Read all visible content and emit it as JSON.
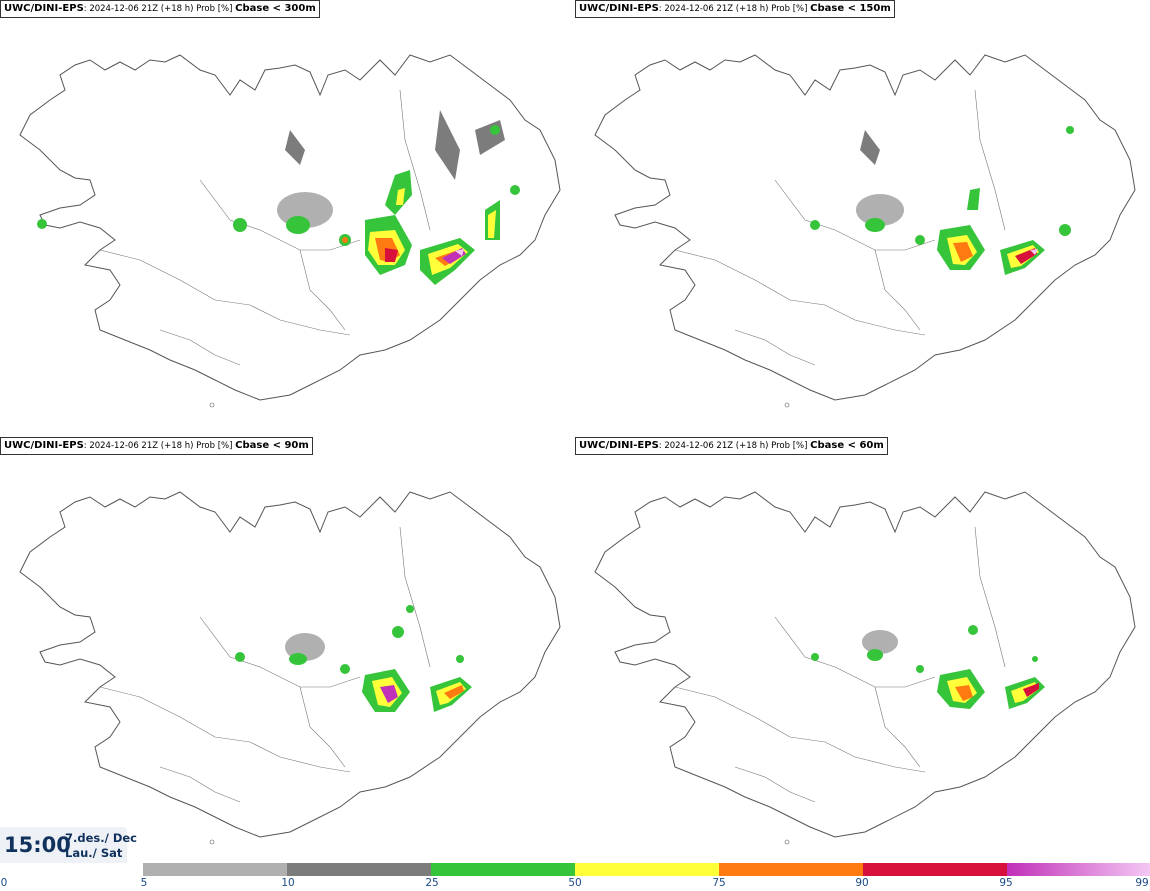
{
  "panels": [
    {
      "model": "UWC/DINI-EPS",
      "meta": ": 2024-12-06 21Z (+18 h) Prob [%] ",
      "threshold": "Cbase < 300m"
    },
    {
      "model": "UWC/DINI-EPS",
      "meta": ": 2024-12-06 21Z (+18 h) Prob [%] ",
      "threshold": "Cbase < 150m"
    },
    {
      "model": "UWC/DINI-EPS",
      "meta": ": 2024-12-06 21Z (+18 h) Prob [%] ",
      "threshold": "Cbase < 90m"
    },
    {
      "model": "UWC/DINI-EPS",
      "meta": ": 2024-12-06 21Z (+18 h) Prob [%] ",
      "threshold": "Cbase < 60m"
    }
  ],
  "timestamp": {
    "time": "15:00",
    "date_line1": "7.des./ Dec",
    "date_line2": "Lau./ Sat"
  },
  "legend": {
    "ticks": [
      "0",
      "5",
      "10",
      "25",
      "50",
      "75",
      "90",
      "95",
      "99"
    ],
    "colors": [
      "#b0b0b0",
      "#7c7c7c",
      "#35c43a",
      "#ffff3a",
      "#ff7a10",
      "#d8103c",
      "#c030b8",
      "#f4c8f4"
    ]
  },
  "map": {
    "land_color": "#ffffff",
    "outline_color": "#555555"
  }
}
